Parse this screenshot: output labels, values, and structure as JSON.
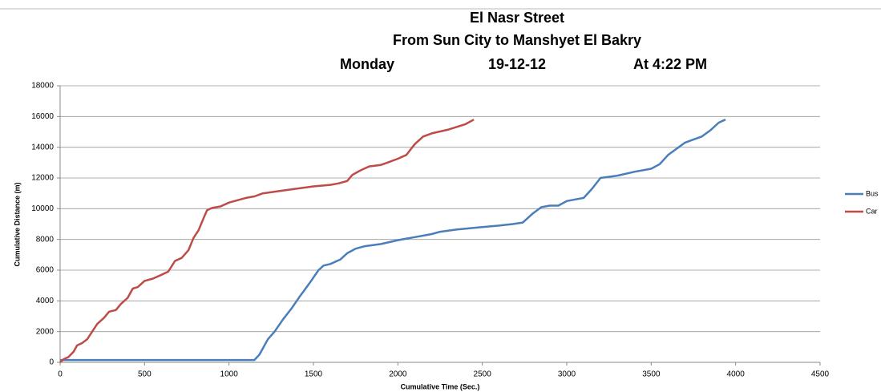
{
  "chart_data": {
    "type": "line",
    "title": [
      "El Nasr  Street",
      "From Sun City to Manshyet El Bakry"
    ],
    "subtitle": [
      "Monday",
      "19-12-12",
      "At 4:22 PM"
    ],
    "x_label": "Cumulative Time (Sec.)",
    "y_label": "Cumulative Distance  (m)",
    "xlim": [
      0,
      4500
    ],
    "xticks": [
      0,
      500,
      1000,
      1500,
      2000,
      2500,
      3000,
      3500,
      4000,
      4500
    ],
    "ylim": [
      0,
      18000
    ],
    "yticks": [
      0,
      2000,
      4000,
      6000,
      8000,
      10000,
      12000,
      14000,
      16000,
      18000
    ],
    "grid": true,
    "legend": "right",
    "series": [
      {
        "name": "Bus",
        "color": "#4a7ebb",
        "x": [
          0,
          1150,
          1180,
          1230,
          1270,
          1320,
          1370,
          1420,
          1480,
          1530,
          1560,
          1600,
          1660,
          1700,
          1750,
          1800,
          1900,
          2000,
          2100,
          2200,
          2250,
          2350,
          2500,
          2600,
          2680,
          2740,
          2800,
          2850,
          2900,
          2950,
          3000,
          3050,
          3100,
          3150,
          3200,
          3300,
          3400,
          3500,
          3550,
          3600,
          3650,
          3700,
          3750,
          3800,
          3850,
          3900,
          3940
        ],
        "values": [
          150,
          150,
          500,
          1500,
          2000,
          2800,
          3500,
          4300,
          5200,
          6000,
          6300,
          6400,
          6700,
          7100,
          7400,
          7550,
          7700,
          7950,
          8150,
          8350,
          8500,
          8650,
          8800,
          8900,
          9000,
          9100,
          9700,
          10100,
          10200,
          10200,
          10500,
          10600,
          10700,
          11300,
          12000,
          12150,
          12400,
          12600,
          12900,
          13500,
          13900,
          14300,
          14500,
          14700,
          15100,
          15600,
          15800
        ]
      },
      {
        "name": "Car",
        "color": "#be4b48",
        "x": [
          0,
          20,
          50,
          80,
          100,
          130,
          160,
          190,
          220,
          260,
          290,
          330,
          360,
          400,
          430,
          460,
          500,
          550,
          600,
          640,
          680,
          720,
          760,
          790,
          820,
          850,
          870,
          900,
          950,
          1000,
          1100,
          1150,
          1200,
          1300,
          1400,
          1500,
          1600,
          1650,
          1700,
          1730,
          1780,
          1830,
          1900,
          1950,
          2000,
          2050,
          2100,
          2150,
          2200,
          2300,
          2400,
          2450
        ],
        "values": [
          0,
          200,
          350,
          700,
          1100,
          1250,
          1500,
          2000,
          2500,
          2900,
          3300,
          3400,
          3800,
          4200,
          4800,
          4900,
          5300,
          5450,
          5700,
          5900,
          6600,
          6800,
          7300,
          8100,
          8600,
          9400,
          9900,
          10050,
          10150,
          10400,
          10700,
          10800,
          11000,
          11150,
          11300,
          11450,
          11550,
          11650,
          11800,
          12200,
          12500,
          12750,
          12850,
          13050,
          13250,
          13500,
          14200,
          14700,
          14900,
          15150,
          15500,
          15800
        ]
      }
    ]
  }
}
